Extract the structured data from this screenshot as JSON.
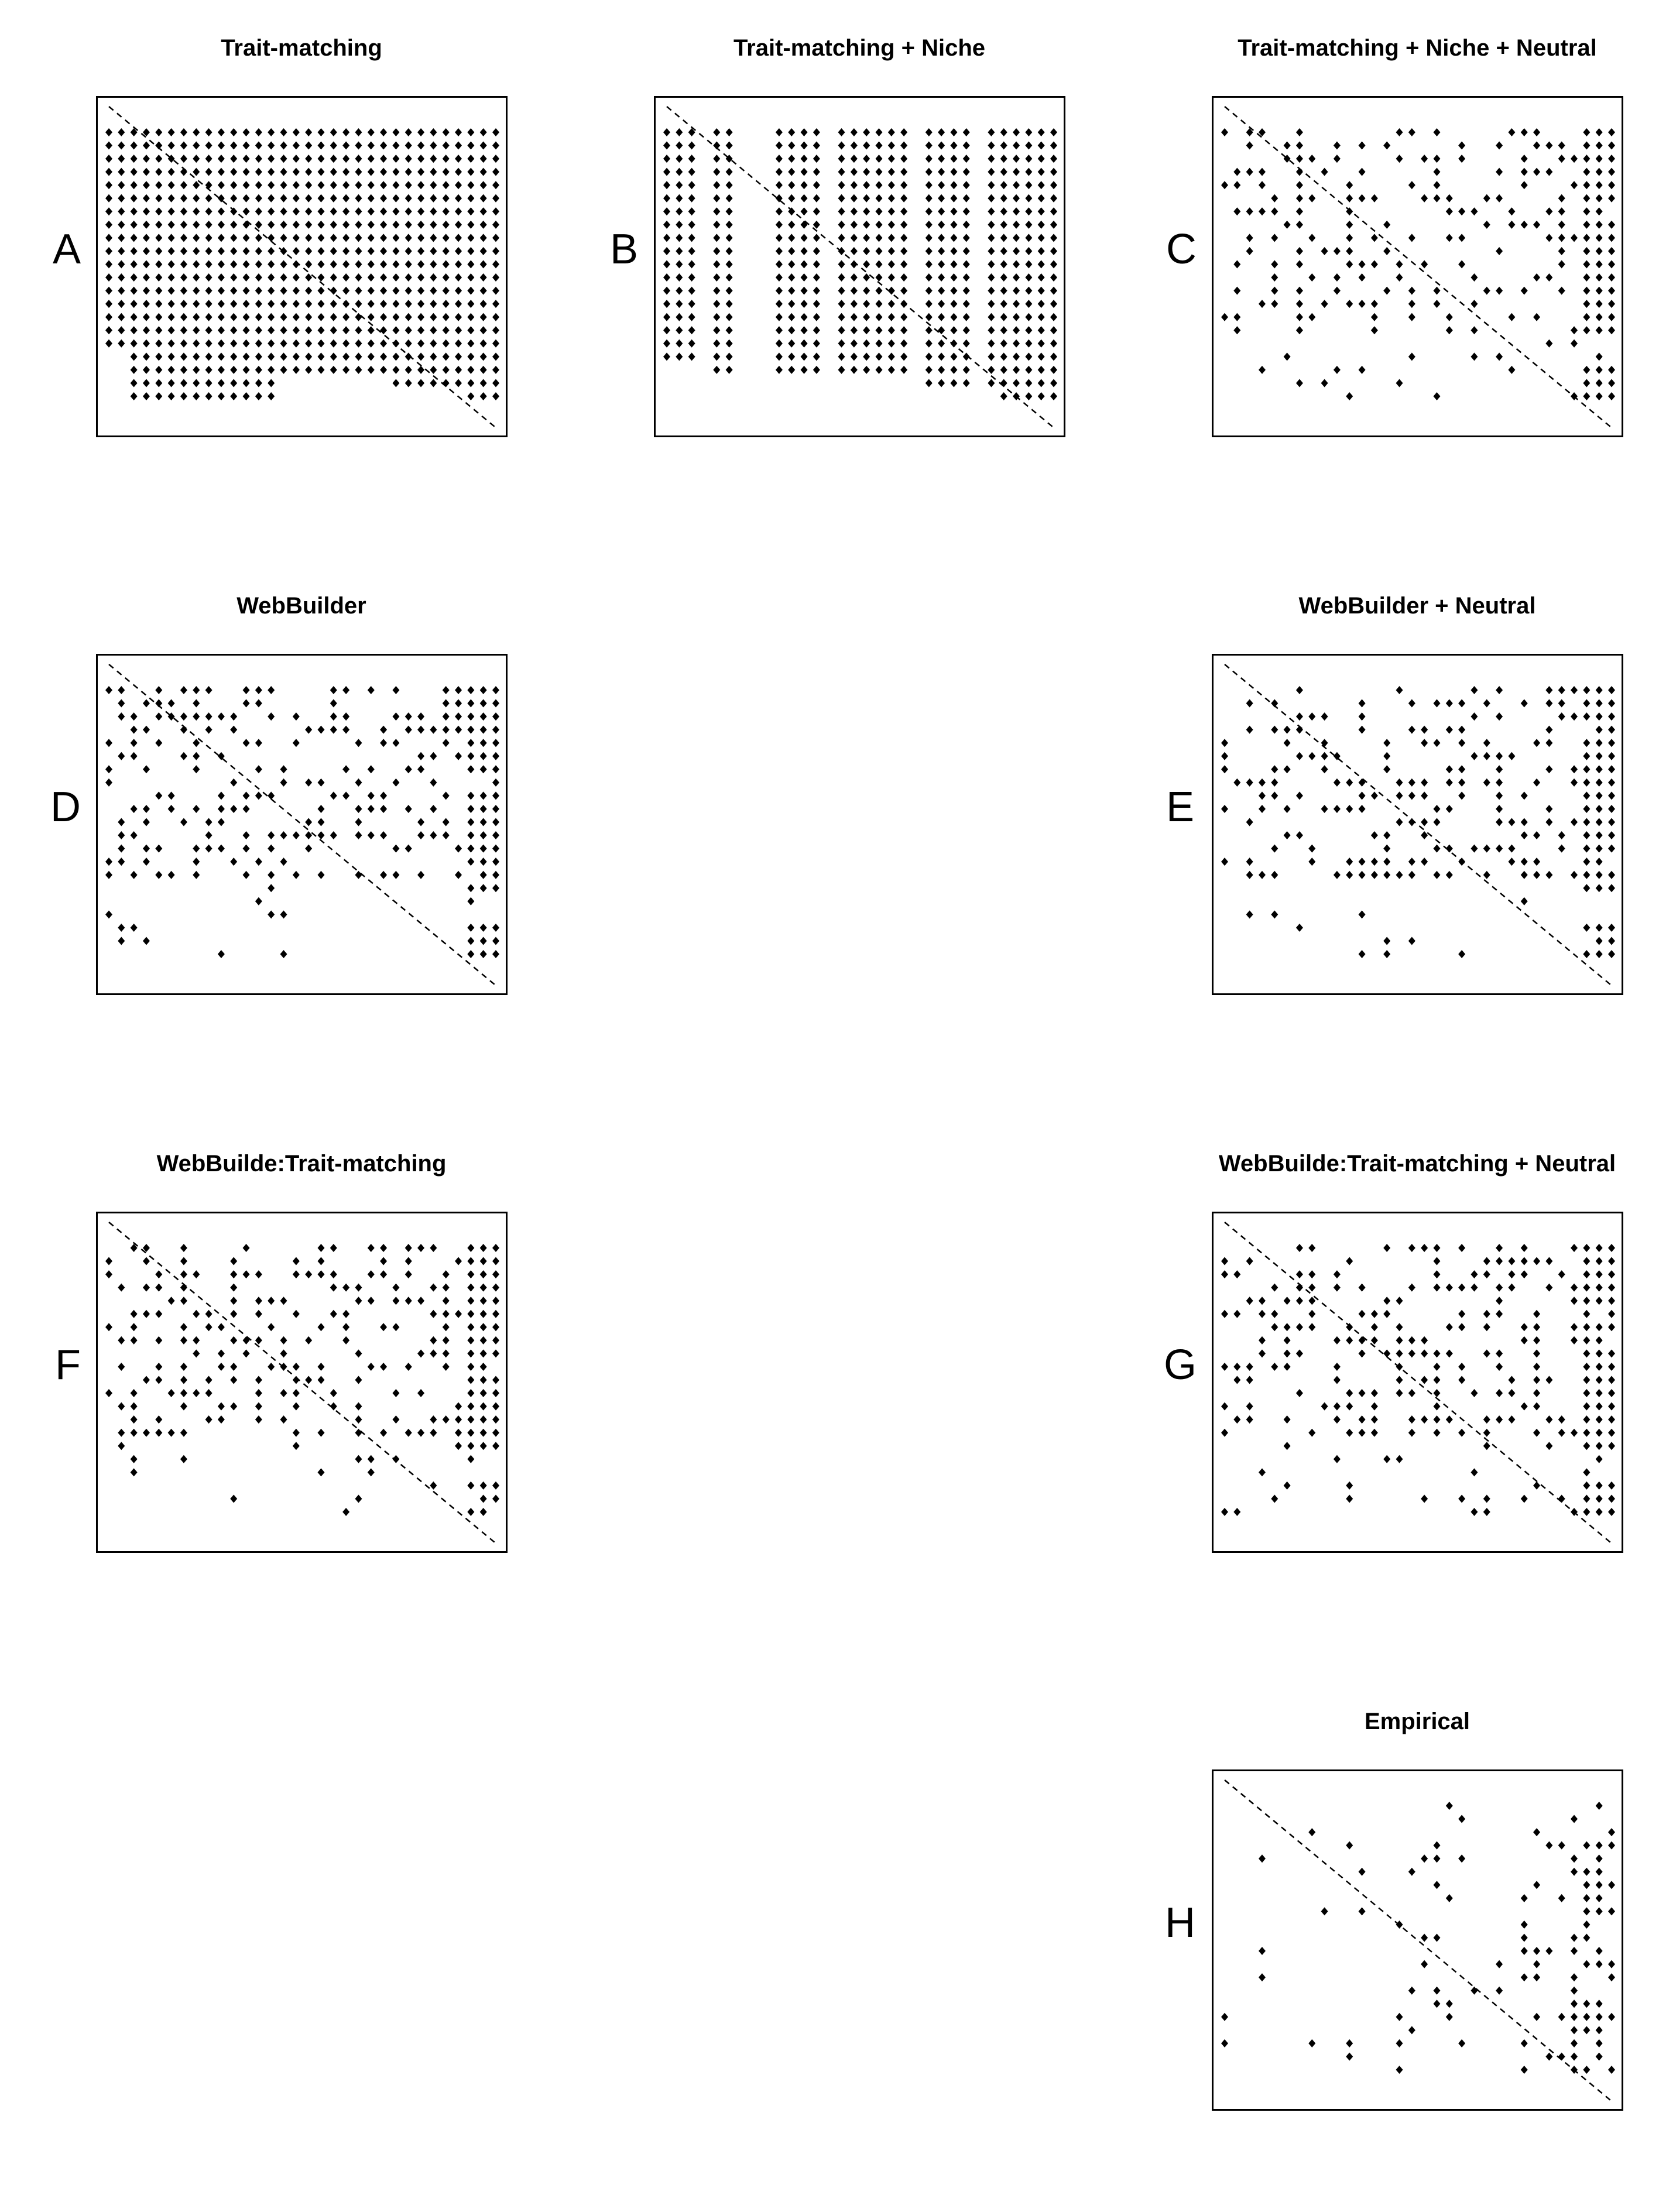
{
  "chart_data": [
    {
      "type": "matrix-scatter",
      "title": "Trait-matching",
      "panel_label": "A",
      "rows": 21,
      "cols": 32,
      "diagonal": "dashed",
      "pattern": "triangle",
      "row_cutoffs": [
        17,
        17,
        21,
        21,
        21,
        21,
        21,
        21,
        21,
        21,
        21,
        21,
        21,
        21,
        19,
        19,
        19,
        19,
        19,
        19,
        19,
        19,
        19,
        20,
        20,
        20,
        20,
        20,
        20,
        21,
        21,
        21
      ]
    },
    {
      "type": "matrix-scatter",
      "title": "Trait-matching + Niche",
      "panel_label": "B",
      "rows": 21,
      "cols": 32,
      "diagonal": "dashed",
      "pattern": "columns",
      "col_groups": [
        [
          1,
          2,
          3
        ],
        [
          5,
          6
        ],
        [
          10,
          11,
          12,
          13
        ],
        [
          15,
          16,
          17,
          18,
          19,
          20
        ],
        [
          22,
          23,
          24,
          25
        ],
        [
          27,
          28,
          29,
          30,
          31,
          32
        ]
      ],
      "col_bottoms": [
        18,
        18,
        18,
        19,
        19,
        19,
        19,
        19,
        19,
        19,
        19,
        19,
        19,
        19,
        19,
        19,
        19,
        19,
        19,
        19,
        19,
        20,
        20,
        20,
        20,
        20,
        20,
        21,
        21,
        21,
        21,
        21
      ]
    },
    {
      "type": "matrix-scatter",
      "title": "Trait-matching + Niche + Neutral",
      "panel_label": "C",
      "rows": 21,
      "cols": 32,
      "diagonal": "dashed",
      "pattern": "sparse-columns",
      "seed": 3,
      "density": 0.35
    },
    {
      "type": "matrix-scatter",
      "title": "WebBuilder",
      "panel_label": "D",
      "rows": 21,
      "cols": 32,
      "diagonal": "dashed",
      "pattern": "sparse-columns",
      "seed": 4,
      "density": 0.4
    },
    {
      "type": "matrix-scatter",
      "title": "WebBuilder + Neutral",
      "panel_label": "E",
      "rows": 21,
      "cols": 32,
      "diagonal": "dashed",
      "pattern": "sparse-columns",
      "seed": 5,
      "density": 0.38
    },
    {
      "type": "matrix-scatter",
      "title": "WebBuilde:Trait-matching",
      "panel_label": "F",
      "rows": 21,
      "cols": 32,
      "diagonal": "dashed",
      "pattern": "sparse-columns",
      "seed": 6,
      "density": 0.38
    },
    {
      "type": "matrix-scatter",
      "title": "WebBuilde:Trait-matching + Neutral",
      "panel_label": "G",
      "rows": 21,
      "cols": 32,
      "diagonal": "dashed",
      "pattern": "sparse-columns",
      "seed": 7,
      "density": 0.37
    },
    {
      "type": "matrix-scatter",
      "title": "Empirical",
      "panel_label": "H",
      "rows": 21,
      "cols": 32,
      "diagonal": "dashed",
      "pattern": "sparse-right",
      "seed": 8,
      "density": 0.18
    }
  ]
}
